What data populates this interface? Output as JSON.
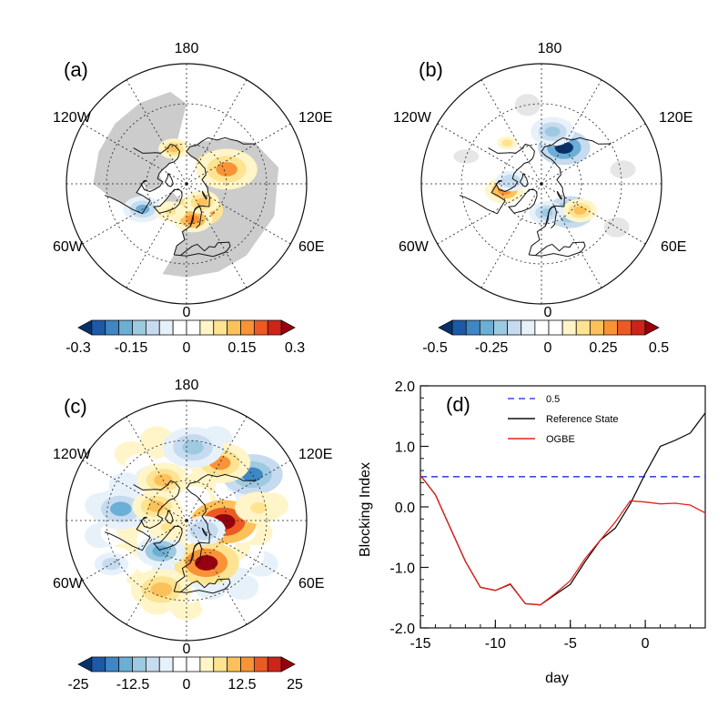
{
  "colors": {
    "land": "#cccccc",
    "land_light": "#e6e6e6",
    "blocking_threshold": "#3a4fd8",
    "reference_state": "#111111",
    "ogbe": "#e2231a",
    "palette_rdbu": [
      "#08306b",
      "#1c5aa8",
      "#3f86c4",
      "#6baed6",
      "#9ecae1",
      "#c6dbef",
      "#e7f1fa",
      "#ffffff",
      "#ffffff",
      "#fff5c8",
      "#fee391",
      "#fdc15b",
      "#f99336",
      "#ec5a24",
      "#cc2419",
      "#99000d"
    ]
  },
  "maps": [
    {
      "id": "a",
      "panel_label": "(a)",
      "lon_labels": {
        "top": "180",
        "left": "120W",
        "right": "120E",
        "lower_left": "60W",
        "lower_right": "60E",
        "bottom": "0"
      },
      "colorbar_ticks": [
        "-0.3",
        "-0.15",
        "0",
        "0.15",
        "0.3"
      ],
      "land_shaded": true,
      "anomalies": [
        {
          "lon": 118,
          "lat": 62,
          "val": 0.95,
          "size": 0.55
        },
        {
          "lon": 110,
          "lat": 58,
          "val": 0.55,
          "size": 0.7
        },
        {
          "lon": 25,
          "lat": 68,
          "val": 0.85,
          "size": 0.55
        },
        {
          "lon": 10,
          "lat": 63,
          "val": 0.6,
          "size": 0.45
        },
        {
          "lon": 40,
          "lat": 72,
          "val": 0.5,
          "size": 0.4
        },
        {
          "lon": -60,
          "lat": 52,
          "val": -0.55,
          "size": 0.45
        },
        {
          "lon": -30,
          "lat": 66,
          "val": 0.35,
          "size": 0.35
        },
        {
          "lon": -160,
          "lat": 62,
          "val": 0.4,
          "size": 0.35
        }
      ]
    },
    {
      "id": "b",
      "panel_label": "(b)",
      "lon_labels": {
        "top": "180",
        "left": "120W",
        "right": "120E",
        "lower_left": "60W",
        "lower_right": "60E",
        "bottom": "0"
      },
      "colorbar_ticks": [
        "-0.5",
        "-0.25",
        "0",
        "0.25",
        "0.5"
      ],
      "land_shaded": false,
      "anomalies": [
        {
          "lon": 148,
          "lat": 58,
          "val": -0.95,
          "size": 0.6
        },
        {
          "lon": 168,
          "lat": 50,
          "val": -0.45,
          "size": 0.5
        },
        {
          "lon": 45,
          "lat": 60,
          "val": -0.75,
          "size": 0.55
        },
        {
          "lon": 55,
          "lat": 55,
          "val": 0.5,
          "size": 0.4
        },
        {
          "lon": 10,
          "lat": 68,
          "val": -0.5,
          "size": 0.4
        },
        {
          "lon": -80,
          "lat": 62,
          "val": 0.6,
          "size": 0.45
        },
        {
          "lon": -95,
          "lat": 67,
          "val": -0.4,
          "size": 0.35
        },
        {
          "lon": -140,
          "lat": 50,
          "val": 0.3,
          "size": 0.35
        }
      ]
    },
    {
      "id": "c",
      "panel_label": "(c)",
      "lon_labels": {
        "top": "180",
        "left": "120W",
        "right": "120E",
        "lower_left": "60W",
        "lower_right": "60E",
        "bottom": "0"
      },
      "colorbar_ticks": [
        "-25",
        "-12.5",
        "0",
        "12.5",
        "25"
      ],
      "land_shaded": false,
      "anomalies": [
        {
          "lon": 88,
          "lat": 62,
          "val": 1.0,
          "size": 0.75
        },
        {
          "lon": 25,
          "lat": 55,
          "val": 0.95,
          "size": 0.75
        },
        {
          "lon": 125,
          "lat": 30,
          "val": -0.7,
          "size": 0.7
        },
        {
          "lon": 150,
          "lat": 40,
          "val": 0.55,
          "size": 0.7
        },
        {
          "lon": 175,
          "lat": 35,
          "val": -0.5,
          "size": 0.7
        },
        {
          "lon": -150,
          "lat": 55,
          "val": 0.5,
          "size": 0.6
        },
        {
          "lon": -100,
          "lat": 40,
          "val": -0.55,
          "size": 0.7
        },
        {
          "lon": -115,
          "lat": 65,
          "val": 0.45,
          "size": 0.55
        },
        {
          "lon": -40,
          "lat": 60,
          "val": -0.6,
          "size": 0.55
        },
        {
          "lon": -20,
          "lat": 35,
          "val": 0.5,
          "size": 0.7
        },
        {
          "lon": 60,
          "lat": 75,
          "val": -0.4,
          "size": 0.5
        },
        {
          "lon": -70,
          "lat": 75,
          "val": 0.35,
          "size": 0.45
        },
        {
          "lon": 100,
          "lat": 35,
          "val": 0.35,
          "size": 0.55
        },
        {
          "lon": -60,
          "lat": 25,
          "val": -0.3,
          "size": 0.6
        }
      ]
    }
  ],
  "chart_data": {
    "type": "line",
    "panel_label": "(d)",
    "xlabel": "day",
    "ylabel": "Blocking Index",
    "xlim": [
      -15,
      4
    ],
    "ylim": [
      -2.0,
      2.0
    ],
    "xticks": [
      "-15",
      "-10",
      "-5",
      "0"
    ],
    "xtick_values": [
      -15,
      -10,
      -5,
      0
    ],
    "yticks": [
      "-2.0",
      "-1.0",
      "0.0",
      "1.0",
      "2.0"
    ],
    "ytick_values": [
      -2,
      -1,
      0,
      1,
      2
    ],
    "legend_position": "top-left",
    "series": [
      {
        "name": "0.5",
        "style": "dashed",
        "color": "#3a4fd8",
        "x": [
          -15,
          4
        ],
        "y": [
          0.5,
          0.5
        ]
      },
      {
        "name": "Reference State",
        "style": "solid",
        "color": "#111111",
        "x": [
          -15,
          -14,
          -13,
          -12,
          -11,
          -10,
          -9,
          -8,
          -7,
          -6,
          -5,
          -4,
          -3,
          -2,
          -1,
          0,
          1,
          2,
          3,
          4
        ],
        "y": [
          0.52,
          0.2,
          -0.35,
          -0.9,
          -1.33,
          -1.38,
          -1.28,
          -1.6,
          -1.62,
          -1.45,
          -1.28,
          -0.9,
          -0.55,
          -0.35,
          0.05,
          0.55,
          1.0,
          1.1,
          1.22,
          1.55
        ]
      },
      {
        "name": "OGBE",
        "style": "solid",
        "color": "#e2231a",
        "x": [
          -15,
          -14,
          -13,
          -12,
          -11,
          -10,
          -9,
          -8,
          -7,
          -6,
          -5,
          -4,
          -3,
          -2,
          -1,
          0,
          1,
          2,
          3,
          4
        ],
        "y": [
          0.52,
          0.2,
          -0.35,
          -0.9,
          -1.33,
          -1.38,
          -1.27,
          -1.6,
          -1.62,
          -1.43,
          -1.22,
          -0.85,
          -0.55,
          -0.25,
          0.1,
          0.08,
          0.05,
          0.06,
          0.03,
          -0.1
        ]
      }
    ]
  }
}
